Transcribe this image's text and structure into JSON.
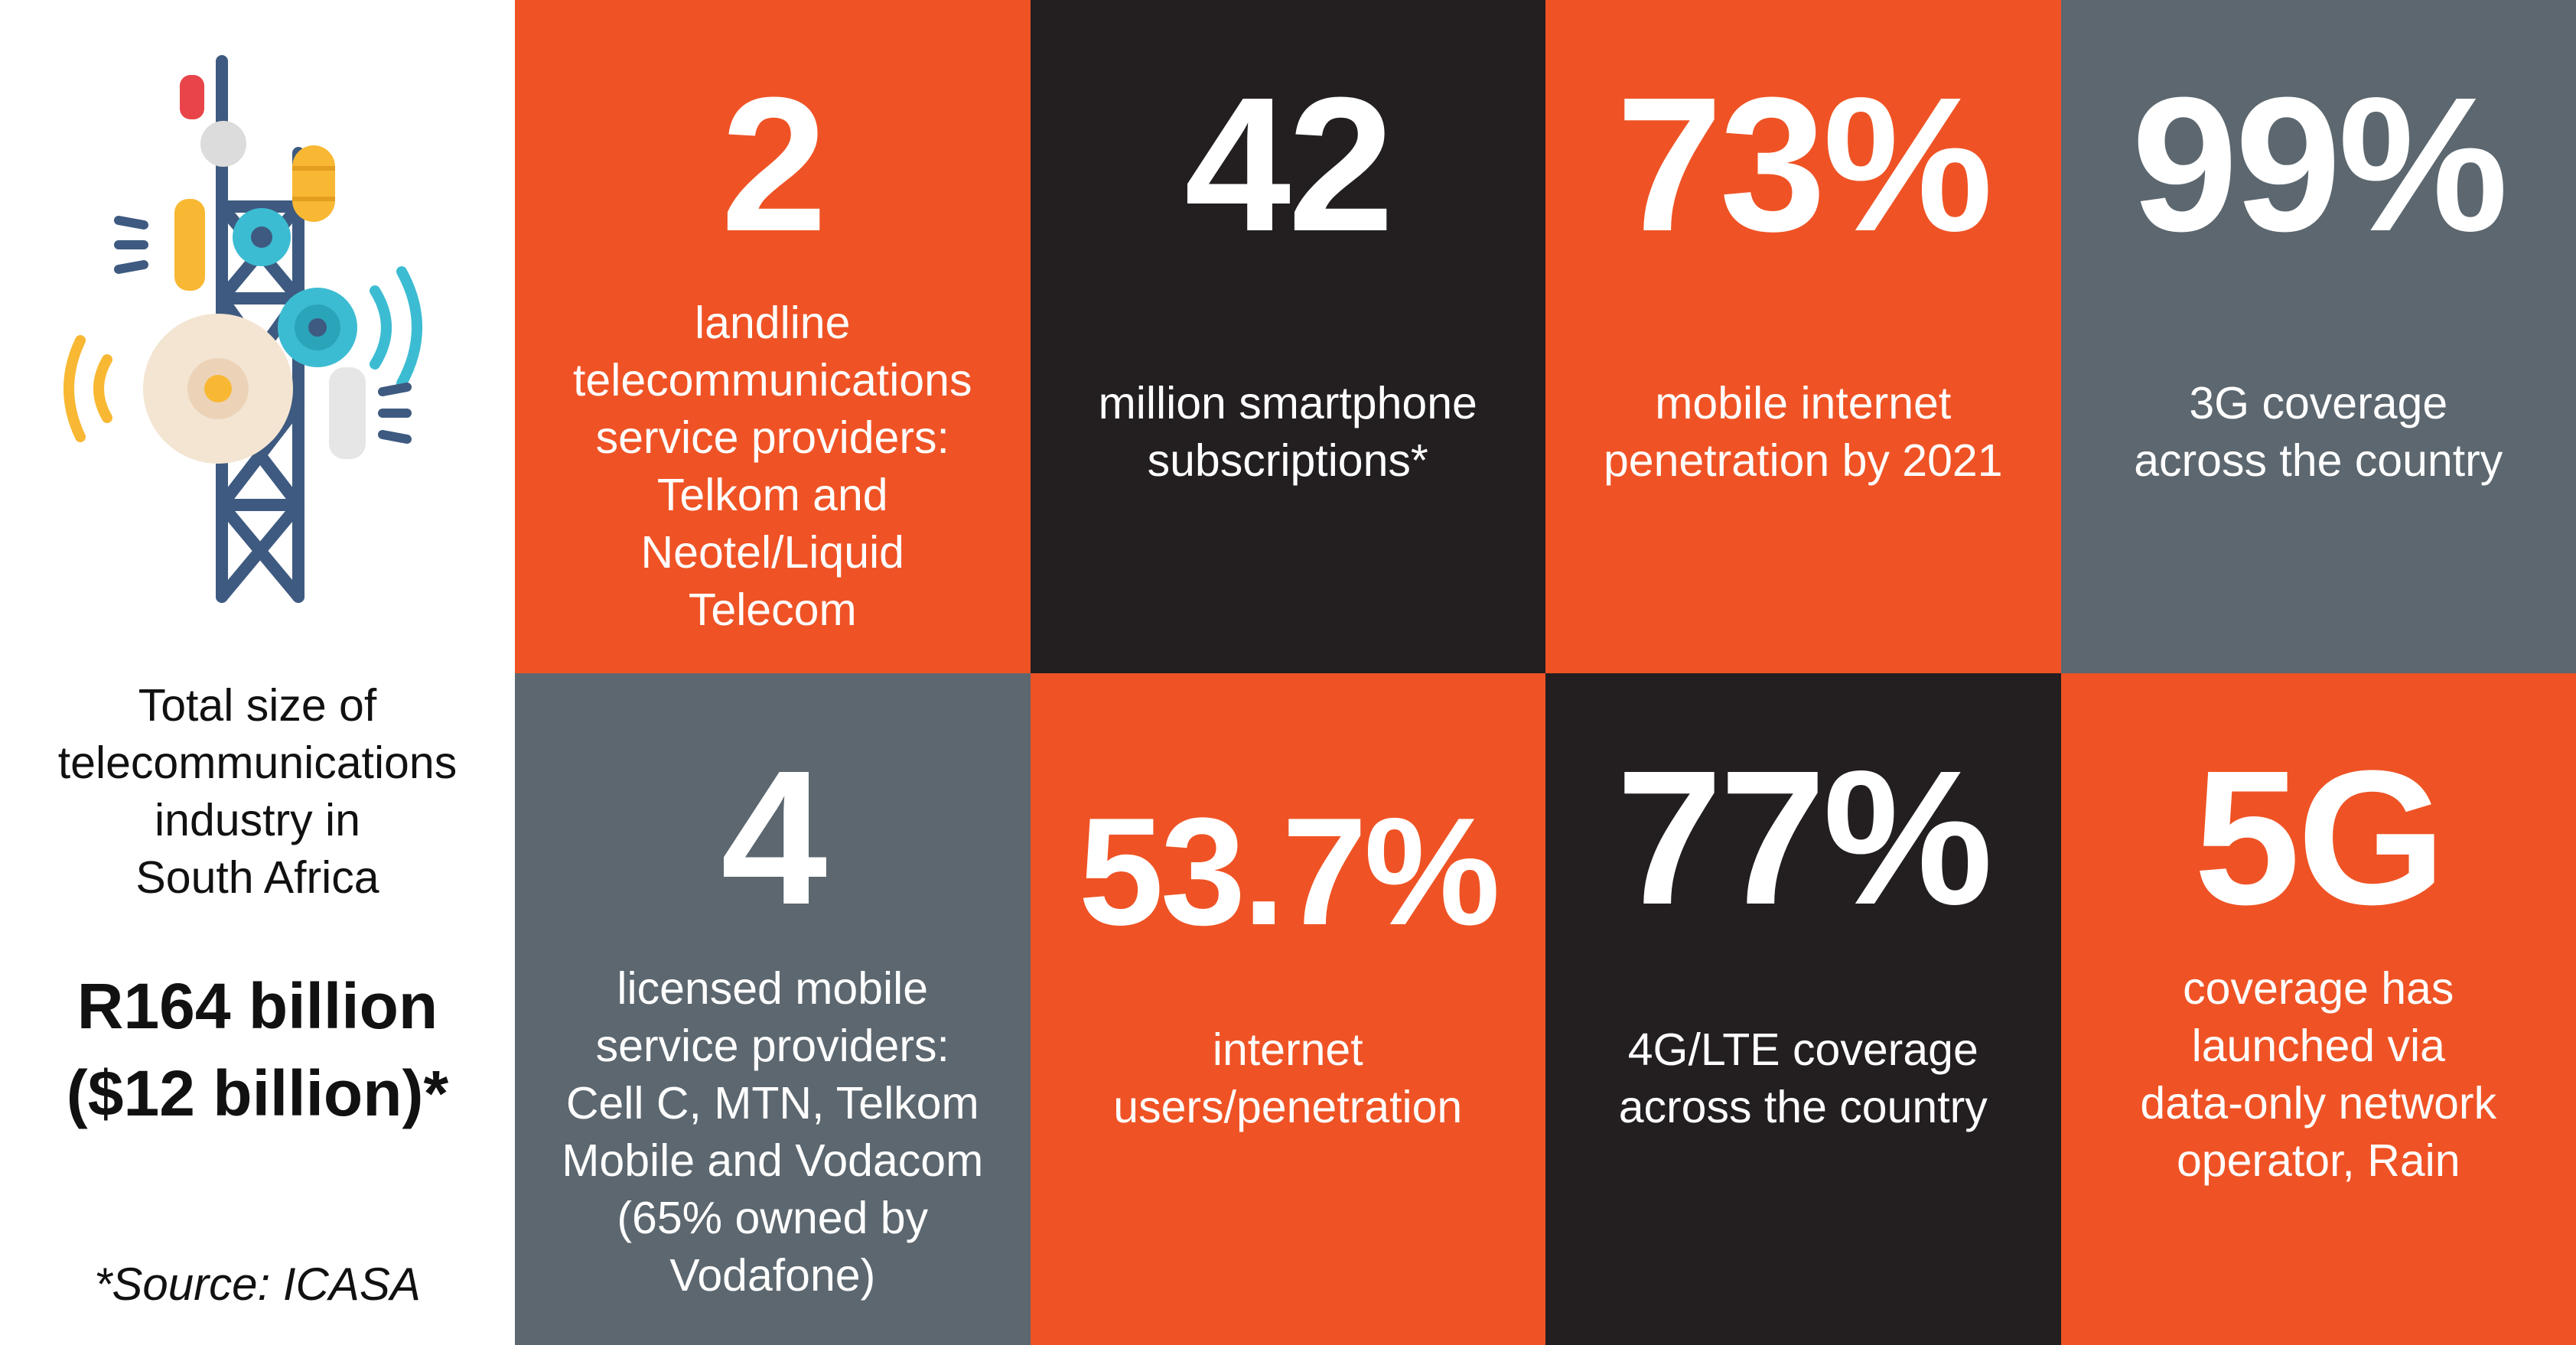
{
  "sidebar": {
    "icon": "telecom-tower-icon",
    "label": "Total size of\ntelecommunications\nindustry in\nSouth Africa",
    "amount": "R164 billion\n($12 billion)*",
    "source": "*Source: ICASA"
  },
  "colors": {
    "orange": "#ef5325",
    "dark": "#231f20",
    "slate": "#5c676f",
    "text": "#ffffff"
  },
  "tiles": [
    {
      "stat": "2",
      "desc": "landline\ntelecommunications\nservice providers:\nTelkom and\nNeotel/Liquid\nTelecom"
    },
    {
      "stat": "42",
      "desc": "million smartphone\nsubscriptions*"
    },
    {
      "stat": "73%",
      "desc": "mobile internet\npenetration by 2021"
    },
    {
      "stat": "99%",
      "desc": "3G coverage\nacross the country"
    },
    {
      "stat": "4",
      "desc": "licensed mobile\nservice providers:\nCell C, MTN, Telkom\nMobile and Vodacom\n(65% owned by\nVodafone)"
    },
    {
      "stat": "53.7%",
      "desc": "internet\nusers/penetration"
    },
    {
      "stat": "77%",
      "desc": "4G/LTE coverage\nacross the country"
    },
    {
      "stat": "5G",
      "desc": "coverage has\nlaunched via\ndata-only network\noperator, Rain"
    }
  ]
}
